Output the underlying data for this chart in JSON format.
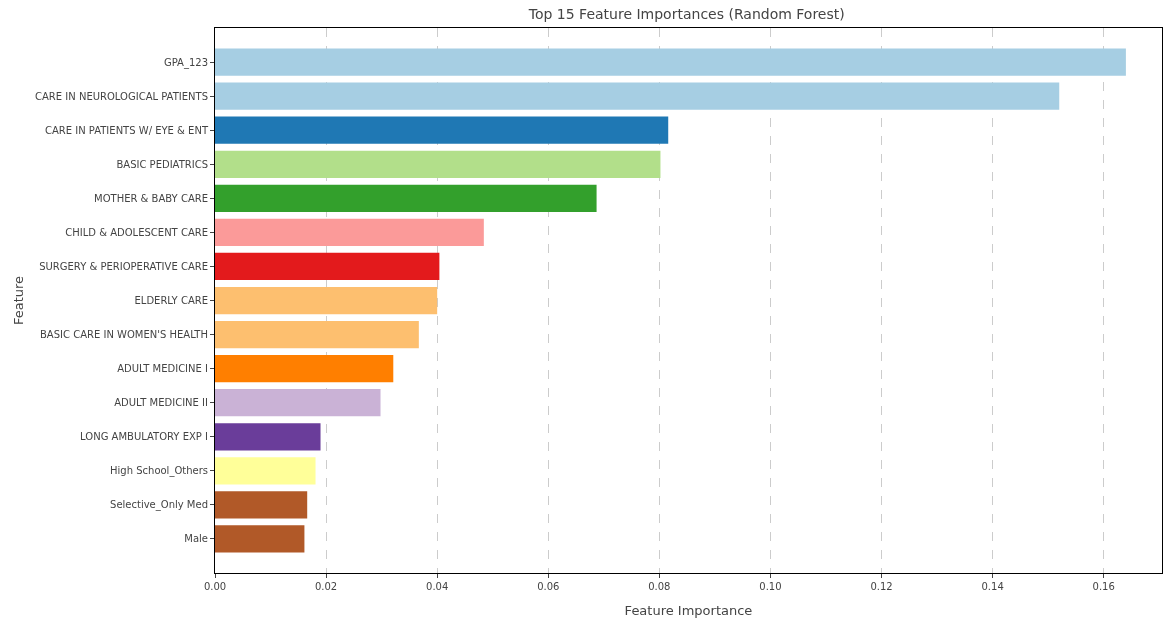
{
  "chart_data": {
    "type": "bar",
    "orientation": "horizontal",
    "title": "Top 15 Feature Importances (Random Forest)",
    "xlabel": "Feature Importance",
    "ylabel": "Feature",
    "categories": [
      "GPA_123",
      "CARE IN NEUROLOGICAL PATIENTS",
      "CARE IN PATIENTS W/ EYE & ENT",
      "BASIC PEDIATRICS",
      "MOTHER & BABY CARE",
      "CHILD & ADOLESCENT CARE",
      "SURGERY & PERIOPERATIVE CARE",
      "ELDERLY CARE",
      "BASIC CARE IN WOMEN'S HEALTH",
      "ADULT MEDICINE I",
      "ADULT MEDICINE II",
      "LONG AMBULATORY EXP I",
      "High School_Others",
      "Selective_Only Med",
      "Male"
    ],
    "values": [
      0.164,
      0.152,
      0.0816,
      0.0802,
      0.0687,
      0.0484,
      0.0404,
      0.04,
      0.0367,
      0.0321,
      0.0298,
      0.019,
      0.0181,
      0.0166,
      0.0161
    ],
    "colors": [
      "#a6cee3",
      "#a6cee3",
      "#1f78b4",
      "#b2df8a",
      "#33a02c",
      "#fb9a99",
      "#e31a1c",
      "#fdbf6f",
      "#fdbf6f",
      "#ff7f00",
      "#cab2d6",
      "#6a3d9a",
      "#ffff99",
      "#b15928",
      "#b15928"
    ],
    "xlim": [
      0,
      0.1705
    ],
    "xticks": [
      {
        "value": 0,
        "label": "0.00"
      },
      {
        "value": 0.02,
        "label": "0.02"
      },
      {
        "value": 0.04,
        "label": "0.04"
      },
      {
        "value": 0.06,
        "label": "0.06"
      },
      {
        "value": 0.08,
        "label": "0.08"
      },
      {
        "value": 0.1,
        "label": "0.10"
      },
      {
        "value": 0.12,
        "label": "0.12"
      },
      {
        "value": 0.14,
        "label": "0.14"
      },
      {
        "value": 0.16,
        "label": "0.16"
      }
    ],
    "grid": "x",
    "line_style": "dashed"
  }
}
